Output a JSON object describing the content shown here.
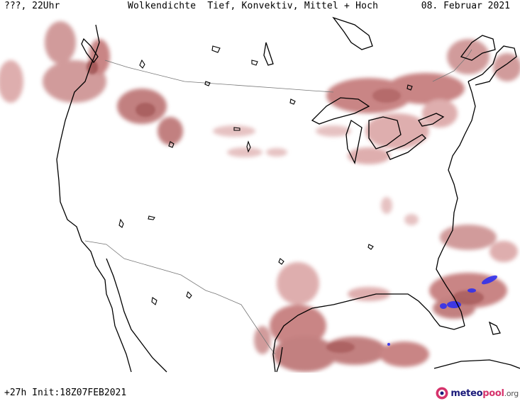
{
  "header": {
    "time_label": "???, 22Uhr",
    "title": "Wolkendichte  Tief, Konvektiv, Mittel + Hoch",
    "date": "08. Februar 2021"
  },
  "footer": {
    "lead": "+27h Init:18Z07FEB2021",
    "brand_part1": "meteo",
    "brand_part2": "pool",
    "brand_part3": ".org"
  },
  "map": {
    "region": "USA",
    "layers": [
      "coastlines",
      "borders",
      "cloud-density"
    ],
    "colors": {
      "cloud_light": "#d9a0a0",
      "cloud_medium": "#b86a6a",
      "cloud_dense": "#8e3a3a",
      "convective": "#3030ee",
      "coast": "#000000",
      "border": "#777777"
    }
  },
  "brand_logo_icon": "meteopool-logo-icon"
}
